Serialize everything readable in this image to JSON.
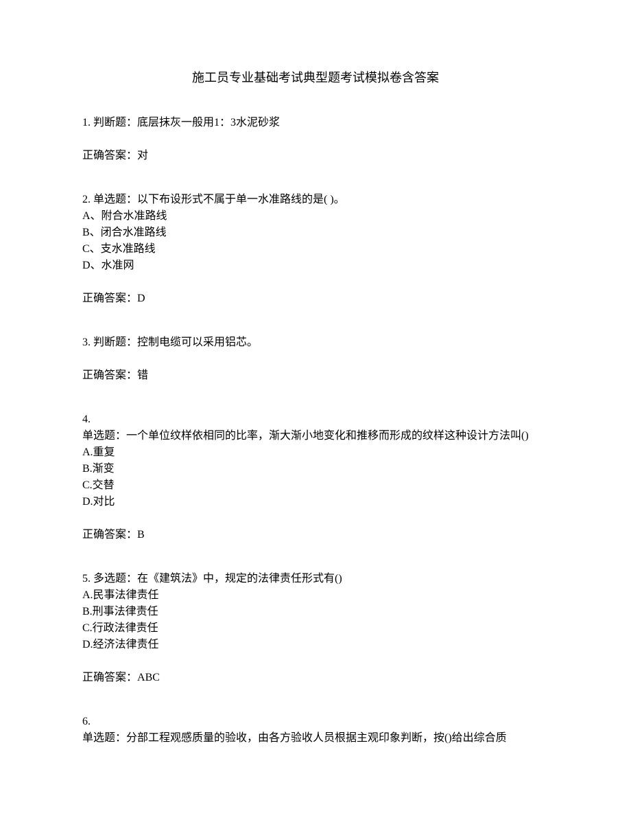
{
  "title": "施工员专业基础考试典型题考试模拟卷含答案",
  "questions": [
    {
      "number": "1.",
      "type": "判断题：",
      "text": "底层抹灰一般用1：3水泥砂浆",
      "options": [],
      "answer_label": "正确答案：",
      "answer": "对"
    },
    {
      "number": "2.",
      "type": "单选题：",
      "text": "以下布设形式不属于单一水准路线的是(  )。",
      "options": [
        "A、附合水准路线",
        "B、闭合水准路线",
        "C、支水准路线",
        "D、水准网"
      ],
      "answer_label": "正确答案：",
      "answer": "D"
    },
    {
      "number": "3.",
      "type": "判断题：",
      "text": "控制电缆可以采用铝芯。",
      "options": [],
      "answer_label": "正确答案：",
      "answer": "错"
    },
    {
      "number": "4.",
      "type": "单选题：",
      "text": "一个单位纹样依相同的比率，渐大渐小地变化和推移而形成的纹样这种设计方法叫()",
      "options": [
        "A.重复",
        "B.渐变",
        "C.交替",
        "D.对比"
      ],
      "answer_label": "正确答案：",
      "answer": "B",
      "number_on_own_line": true
    },
    {
      "number": "5.",
      "type": "多选题：",
      "text": "在《建筑法》中，规定的法律责任形式有()",
      "options": [
        "A.民事法律责任",
        "B.刑事法律责任",
        "C.行政法律责任",
        "D.经济法律责任"
      ],
      "answer_label": "正确答案：",
      "answer": "ABC"
    },
    {
      "number": "6.",
      "type": "单选题：",
      "text": "分部工程观感质量的验收，由各方验收人员根据主观印象判断，按()给出综合质",
      "options": [],
      "answer_label": "",
      "answer": "",
      "number_on_own_line": true,
      "partial": true
    }
  ]
}
